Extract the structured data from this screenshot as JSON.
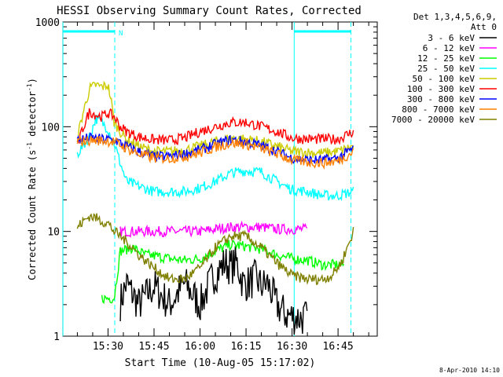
{
  "chart_data": {
    "type": "line",
    "title": "HESSI Observing Summary Count Rates, Corrected",
    "xlabel": "Start Time (10-Aug-05 15:17:02)",
    "ylabel_main": "Corrected Count Rate (s",
    "ylabel_sup1": "-1",
    "ylabel_mid": " detector",
    "ylabel_sup2": "-1",
    "ylabel_end": ")",
    "yscale": "log",
    "ylim": [
      1,
      1000
    ],
    "xlim_minutes": [
      15.28,
      16.95
    ],
    "x_ticks": [
      {
        "label": "15:30",
        "min": 30
      },
      {
        "label": "15:45",
        "min": 45
      },
      {
        "label": "16:00",
        "min": 60
      },
      {
        "label": "16:15",
        "min": 75
      },
      {
        "label": "16:30",
        "min": 90
      },
      {
        "label": "16:45",
        "min": 105
      }
    ],
    "y_ticks": [
      {
        "label": "1",
        "value": 1
      },
      {
        "label": "10",
        "value": 10
      },
      {
        "label": "100",
        "value": 100
      },
      {
        "label": "1000",
        "value": 1000
      }
    ],
    "legend_header": [
      "Det 1,3,4,5,6,9,",
      "Att 0"
    ],
    "legend_position": "right",
    "series": [
      {
        "name": "3 - 6 keV",
        "color": "#000000",
        "x": [
          34,
          36,
          40,
          45,
          50,
          55,
          60,
          64,
          66,
          68,
          70,
          72,
          74,
          76,
          78,
          80,
          82,
          85,
          88,
          92,
          95
        ],
        "y": [
          2.1,
          3.2,
          2.0,
          3.0,
          2.0,
          3.2,
          2.0,
          3.6,
          4.2,
          5.0,
          4.6,
          5.0,
          3.2,
          3.2,
          3.6,
          3.0,
          3.2,
          2.0,
          1.6,
          1.5,
          1.5
        ]
      },
      {
        "name": "6 - 12 keV",
        "color": "#ff00ff",
        "x": [
          34,
          40,
          50,
          60,
          65,
          70,
          75,
          80,
          85,
          90,
          95
        ],
        "y": [
          10,
          10,
          10,
          10,
          10.5,
          11,
          11,
          11,
          10.5,
          10.5,
          10.5
        ]
      },
      {
        "name": "12 - 25 keV",
        "color": "#00ff00",
        "x": [
          28,
          32,
          34,
          38,
          42,
          46,
          50,
          55,
          60,
          65,
          70,
          75,
          80,
          85,
          90,
          95,
          100,
          104,
          107
        ],
        "y": [
          2.3,
          2.3,
          6.5,
          7.0,
          6.0,
          5.8,
          5.5,
          5.3,
          5.5,
          6.5,
          7.5,
          7.2,
          6.8,
          6.0,
          5.5,
          5.3,
          4.8,
          4.8,
          4.8
        ]
      },
      {
        "name": "25 - 50 keV",
        "color": "#00ffff",
        "x": [
          20,
          24,
          26,
          28,
          30,
          32,
          34,
          36,
          40,
          45,
          50,
          55,
          60,
          65,
          70,
          75,
          80,
          85,
          90,
          95,
          100,
          105,
          110
        ],
        "y": [
          55,
          80,
          120,
          110,
          95,
          70,
          45,
          30,
          27,
          24,
          24,
          24,
          26,
          30,
          36,
          38,
          37,
          30,
          25,
          24,
          22,
          22,
          24
        ]
      },
      {
        "name": "50 - 100 keV",
        "color": "#cccc00",
        "x": [
          20,
          22,
          24,
          26,
          28,
          30,
          31,
          32,
          34,
          36,
          40,
          45,
          50,
          55,
          60,
          65,
          70,
          75,
          80,
          85,
          90,
          95,
          100,
          105,
          110
        ],
        "y": [
          80,
          140,
          230,
          250,
          240,
          250,
          180,
          110,
          90,
          75,
          65,
          58,
          58,
          60,
          65,
          72,
          78,
          76,
          72,
          65,
          58,
          57,
          56,
          58,
          65
        ]
      },
      {
        "name": "100 - 300 keV",
        "color": "#ff0000",
        "x": [
          20,
          22,
          24,
          26,
          28,
          30,
          32,
          34,
          36,
          40,
          45,
          50,
          55,
          60,
          65,
          70,
          75,
          80,
          85,
          90,
          95,
          100,
          105,
          110
        ],
        "y": [
          65,
          100,
          140,
          130,
          125,
          135,
          125,
          100,
          90,
          80,
          75,
          74,
          78,
          90,
          100,
          110,
          110,
          100,
          90,
          78,
          76,
          76,
          76,
          90
        ]
      },
      {
        "name": "300 - 800 keV",
        "color": "#0000ff",
        "x": [
          20,
          24,
          28,
          32,
          36,
          40,
          45,
          50,
          55,
          60,
          65,
          70,
          75,
          80,
          85,
          90,
          95,
          100,
          105,
          110
        ],
        "y": [
          75,
          78,
          76,
          75,
          65,
          58,
          52,
          52,
          55,
          60,
          68,
          75,
          72,
          66,
          58,
          50,
          48,
          48,
          50,
          62
        ]
      },
      {
        "name": "800 - 7000 keV",
        "color": "#ff8000",
        "x": [
          20,
          24,
          28,
          32,
          36,
          40,
          45,
          50,
          55,
          60,
          65,
          70,
          75,
          80,
          85,
          90,
          95,
          100,
          105,
          110
        ],
        "y": [
          72,
          74,
          74,
          72,
          62,
          55,
          50,
          50,
          52,
          56,
          64,
          70,
          68,
          62,
          55,
          48,
          46,
          45,
          47,
          58
        ]
      },
      {
        "name": "7000 - 20000 keV",
        "color": "#808000",
        "x": [
          20,
          22,
          24,
          26,
          28,
          30,
          32,
          34,
          36,
          38,
          40,
          45,
          50,
          55,
          60,
          65,
          70,
          75,
          80,
          85,
          90,
          95,
          100,
          103,
          106,
          108,
          110
        ],
        "y": [
          11,
          12.5,
          14,
          13.5,
          12.5,
          12,
          10,
          9,
          8,
          7,
          6,
          4.5,
          3.5,
          3.5,
          4.5,
          7,
          9,
          9,
          7,
          5,
          3.8,
          3.5,
          3.5,
          3.8,
          5,
          7,
          10
        ]
      }
    ],
    "vertical_markers": [
      {
        "min": 15.3,
        "color": "#00ffff",
        "style": "solid"
      },
      {
        "min": 32.2,
        "color": "#00ffff",
        "style": "dashed"
      },
      {
        "min": 90.7,
        "color": "#00ffff",
        "style": "solid"
      },
      {
        "min": 109.2,
        "color": "#00ffff",
        "style": "dashed"
      }
    ],
    "top_bars": [
      {
        "from": 15.3,
        "to": 32.2,
        "color": "#00ffff"
      },
      {
        "from": 90.7,
        "to": 109.2,
        "color": "#00ffff"
      }
    ],
    "top_marker_label": "N",
    "footer_date": "8-Apr-2010 14:10"
  }
}
